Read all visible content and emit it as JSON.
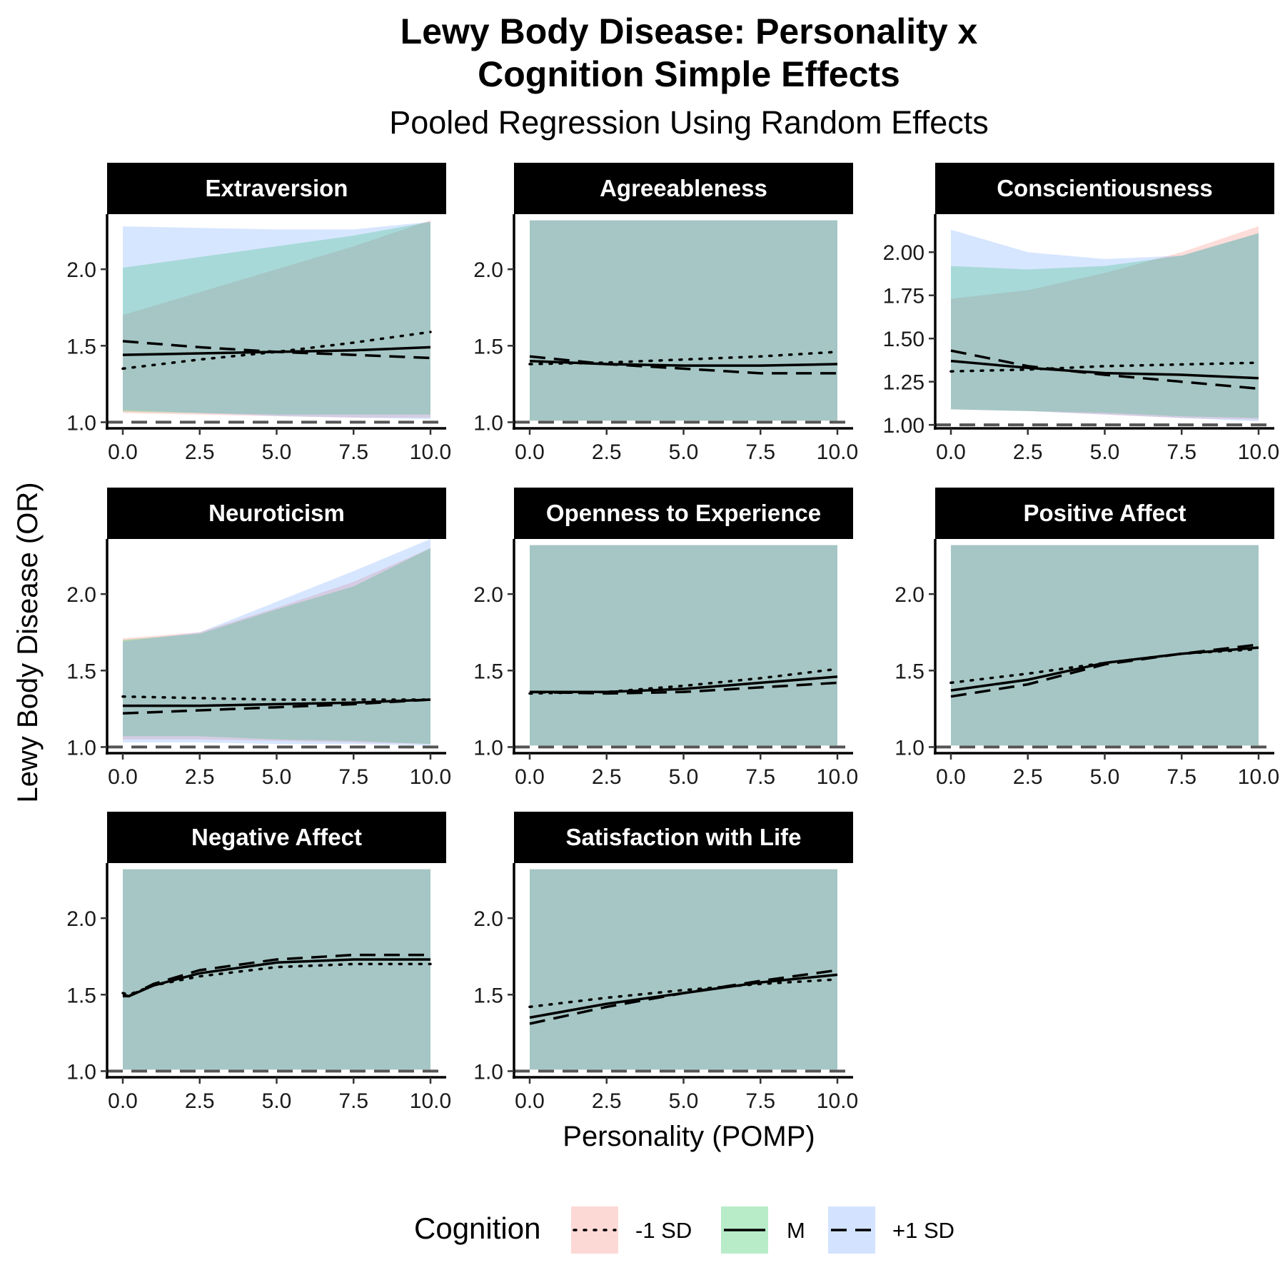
{
  "title_line1": "Lewy Body Disease: Personality x",
  "title_line2": "Cognition Simple Effects",
  "subtitle": "Pooled Regression Using Random Effects",
  "xlabel": "Personality (POMP)",
  "ylabel": "Lewy Body Disease (OR)",
  "legend": {
    "title": "Cognition",
    "entries": [
      {
        "label": "-1 SD",
        "linetype": "dotted",
        "fill": "#F8766D"
      },
      {
        "label": "M",
        "linetype": "solid",
        "fill": "#00BA38"
      },
      {
        "label": "+1 SD",
        "linetype": "dashed",
        "fill": "#619CFF"
      }
    ]
  },
  "colors": {
    "ribbon_overlap": "#a6c6c5",
    "ref_line": "#555555"
  },
  "chart_data": [
    {
      "type": "line",
      "title": "Extraversion",
      "xlim": [
        0,
        10
      ],
      "ylim": [
        0.96,
        2.36
      ],
      "xticks": [
        "0.0",
        "2.5",
        "5.0",
        "7.5",
        "10.0"
      ],
      "yticks": [
        1.0,
        1.5,
        2.0
      ],
      "ytick_labels": [
        "1.0",
        "1.5",
        "2.0"
      ],
      "ref_line": 1.0,
      "x": [
        0,
        2.5,
        5,
        7.5,
        10
      ],
      "series": [
        {
          "name": "-1 SD",
          "values": [
            1.35,
            1.41,
            1.46,
            1.52,
            1.59
          ],
          "lower": [
            1.06,
            1.05,
            1.04,
            1.03,
            1.03
          ],
          "upper": [
            1.7,
            1.85,
            2.0,
            2.15,
            2.32
          ]
        },
        {
          "name": "M",
          "values": [
            1.44,
            1.45,
            1.46,
            1.47,
            1.49
          ],
          "lower": [
            1.07,
            1.06,
            1.05,
            1.05,
            1.05
          ],
          "upper": [
            2.01,
            2.08,
            2.15,
            2.22,
            2.31
          ]
        },
        {
          "name": "+1 SD",
          "values": [
            1.53,
            1.49,
            1.46,
            1.44,
            1.42
          ],
          "lower": [
            1.08,
            1.06,
            1.04,
            1.03,
            1.02
          ],
          "upper": [
            2.28,
            2.27,
            2.26,
            2.26,
            2.31
          ]
        }
      ]
    },
    {
      "type": "line",
      "title": "Agreeableness",
      "xlim": [
        0,
        10
      ],
      "ylim": [
        0.96,
        2.36
      ],
      "xticks": [
        "0.0",
        "2.5",
        "5.0",
        "7.5",
        "10.0"
      ],
      "yticks": [
        1.0,
        1.5,
        2.0
      ],
      "ytick_labels": [
        "1.0",
        "1.5",
        "2.0"
      ],
      "ref_line": 1.0,
      "x": [
        0,
        2.5,
        5,
        7.5,
        10
      ],
      "series": [
        {
          "name": "-1 SD",
          "values": [
            1.38,
            1.39,
            1.41,
            1.43,
            1.46
          ],
          "lower": [
            1.01,
            1.01,
            1.01,
            1.01,
            1.01
          ],
          "upper": [
            2.32,
            2.32,
            2.32,
            2.32,
            2.32
          ]
        },
        {
          "name": "M",
          "values": [
            1.4,
            1.38,
            1.37,
            1.37,
            1.38
          ],
          "lower": [
            1.01,
            1.01,
            1.01,
            1.01,
            1.01
          ],
          "upper": [
            2.32,
            2.32,
            2.32,
            2.32,
            2.32
          ]
        },
        {
          "name": "+1 SD",
          "values": [
            1.43,
            1.38,
            1.35,
            1.32,
            1.32
          ],
          "lower": [
            1.01,
            1.01,
            1.01,
            1.01,
            1.01
          ],
          "upper": [
            2.32,
            2.32,
            2.32,
            2.32,
            2.32
          ]
        }
      ]
    },
    {
      "type": "line",
      "title": "Conscientiousness",
      "xlim": [
        0,
        10
      ],
      "ylim": [
        0.98,
        2.22
      ],
      "xticks": [
        "0.0",
        "2.5",
        "5.0",
        "7.5",
        "10.0"
      ],
      "yticks": [
        1.0,
        1.25,
        1.5,
        1.75,
        2.0
      ],
      "ytick_labels": [
        "1.00",
        "1.25",
        "1.50",
        "1.75",
        "2.00"
      ],
      "ref_line": 1.0,
      "x": [
        0,
        2.5,
        5,
        7.5,
        10
      ],
      "series": [
        {
          "name": "-1 SD",
          "values": [
            1.31,
            1.32,
            1.34,
            1.35,
            1.36
          ],
          "lower": [
            1.09,
            1.08,
            1.06,
            1.04,
            1.03
          ],
          "upper": [
            1.73,
            1.78,
            1.88,
            2.0,
            2.15
          ]
        },
        {
          "name": "M",
          "values": [
            1.37,
            1.33,
            1.3,
            1.29,
            1.27
          ],
          "lower": [
            1.09,
            1.08,
            1.07,
            1.05,
            1.04
          ],
          "upper": [
            1.92,
            1.9,
            1.92,
            1.98,
            2.11
          ]
        },
        {
          "name": "+1 SD",
          "values": [
            1.43,
            1.34,
            1.29,
            1.25,
            1.21
          ],
          "lower": [
            1.09,
            1.08,
            1.06,
            1.04,
            1.02
          ],
          "upper": [
            2.13,
            2.0,
            1.96,
            1.98,
            2.11
          ]
        }
      ]
    },
    {
      "type": "line",
      "title": "Neuroticism",
      "xlim": [
        0,
        10
      ],
      "ylim": [
        0.96,
        2.36
      ],
      "xticks": [
        "0.0",
        "2.5",
        "5.0",
        "7.5",
        "10.0"
      ],
      "yticks": [
        1.0,
        1.5,
        2.0
      ],
      "ytick_labels": [
        "1.0",
        "1.5",
        "2.0"
      ],
      "ref_line": 1.0,
      "x": [
        0,
        2.5,
        5,
        7.5,
        10
      ],
      "series": [
        {
          "name": "-1 SD",
          "values": [
            1.33,
            1.32,
            1.31,
            1.31,
            1.31
          ],
          "lower": [
            1.05,
            1.05,
            1.04,
            1.03,
            1.02
          ],
          "upper": [
            1.71,
            1.75,
            1.91,
            2.08,
            2.3
          ]
        },
        {
          "name": "M",
          "values": [
            1.27,
            1.27,
            1.28,
            1.29,
            1.31
          ],
          "lower": [
            1.07,
            1.07,
            1.05,
            1.04,
            1.02
          ],
          "upper": [
            1.7,
            1.74,
            1.9,
            2.05,
            2.3
          ]
        },
        {
          "name": "+1 SD",
          "values": [
            1.22,
            1.24,
            1.26,
            1.28,
            1.31
          ],
          "lower": [
            1.03,
            1.03,
            1.02,
            1.02,
            1.01
          ],
          "upper": [
            1.69,
            1.75,
            1.95,
            2.15,
            2.36
          ]
        }
      ]
    },
    {
      "type": "line",
      "title": "Openness to Experience",
      "xlim": [
        0,
        10
      ],
      "ylim": [
        0.96,
        2.36
      ],
      "xticks": [
        "0.0",
        "2.5",
        "5.0",
        "7.5",
        "10.0"
      ],
      "yticks": [
        1.0,
        1.5,
        2.0
      ],
      "ytick_labels": [
        "1.0",
        "1.5",
        "2.0"
      ],
      "ref_line": 1.0,
      "x": [
        0,
        2.5,
        5,
        7.5,
        10
      ],
      "series": [
        {
          "name": "-1 SD",
          "values": [
            1.35,
            1.36,
            1.4,
            1.45,
            1.51
          ],
          "lower": [
            1.01,
            1.01,
            1.01,
            1.01,
            1.01
          ],
          "upper": [
            2.32,
            2.32,
            2.32,
            2.32,
            2.32
          ]
        },
        {
          "name": "M",
          "values": [
            1.36,
            1.36,
            1.38,
            1.42,
            1.46
          ],
          "lower": [
            1.01,
            1.01,
            1.01,
            1.01,
            1.01
          ],
          "upper": [
            2.32,
            2.32,
            2.32,
            2.32,
            2.32
          ]
        },
        {
          "name": "+1 SD",
          "values": [
            1.36,
            1.35,
            1.36,
            1.39,
            1.42
          ],
          "lower": [
            1.01,
            1.01,
            1.01,
            1.01,
            1.01
          ],
          "upper": [
            2.32,
            2.32,
            2.32,
            2.32,
            2.32
          ]
        }
      ]
    },
    {
      "type": "line",
      "title": "Positive Affect",
      "xlim": [
        0,
        10
      ],
      "ylim": [
        0.96,
        2.36
      ],
      "xticks": [
        "0.0",
        "2.5",
        "5.0",
        "7.5",
        "10.0"
      ],
      "yticks": [
        1.0,
        1.5,
        2.0
      ],
      "ytick_labels": [
        "1.0",
        "1.5",
        "2.0"
      ],
      "ref_line": 1.0,
      "x": [
        0,
        2.5,
        5,
        7.5,
        10
      ],
      "series": [
        {
          "name": "-1 SD",
          "values": [
            1.42,
            1.48,
            1.55,
            1.61,
            1.64
          ],
          "lower": [
            1.01,
            1.01,
            1.01,
            1.01,
            1.01
          ],
          "upper": [
            2.32,
            2.32,
            2.32,
            2.32,
            2.32
          ]
        },
        {
          "name": "M",
          "values": [
            1.37,
            1.44,
            1.55,
            1.61,
            1.65
          ],
          "lower": [
            1.01,
            1.01,
            1.01,
            1.01,
            1.01
          ],
          "upper": [
            2.32,
            2.32,
            2.32,
            2.32,
            2.32
          ]
        },
        {
          "name": "+1 SD",
          "values": [
            1.33,
            1.41,
            1.54,
            1.61,
            1.67
          ],
          "lower": [
            1.01,
            1.01,
            1.01,
            1.01,
            1.01
          ],
          "upper": [
            2.32,
            2.32,
            2.32,
            2.32,
            2.32
          ]
        }
      ]
    },
    {
      "type": "line",
      "title": "Negative Affect",
      "xlim": [
        0,
        10
      ],
      "ylim": [
        0.96,
        2.36
      ],
      "xticks": [
        "0.0",
        "2.5",
        "5.0",
        "7.5",
        "10.0"
      ],
      "yticks": [
        1.0,
        1.5,
        2.0
      ],
      "ytick_labels": [
        "1.0",
        "1.5",
        "2.0"
      ],
      "ref_line": 1.0,
      "x": [
        0,
        0.2,
        1,
        2.5,
        5,
        7.5,
        10
      ],
      "series": [
        {
          "name": "-1 SD",
          "values": [
            1.51,
            1.5,
            1.56,
            1.62,
            1.68,
            1.7,
            1.7
          ],
          "lower": [
            1.01,
            1.01,
            1.01,
            1.01,
            1.01,
            1.01,
            1.01
          ],
          "upper": [
            2.32,
            2.32,
            2.32,
            2.32,
            2.32,
            2.32,
            2.32
          ]
        },
        {
          "name": "M",
          "values": [
            1.5,
            1.49,
            1.56,
            1.64,
            1.71,
            1.73,
            1.73
          ],
          "lower": [
            1.01,
            1.01,
            1.01,
            1.01,
            1.01,
            1.01,
            1.01
          ],
          "upper": [
            2.32,
            2.32,
            2.32,
            2.32,
            2.32,
            2.32,
            2.32
          ]
        },
        {
          "name": "+1 SD",
          "values": [
            1.49,
            1.49,
            1.57,
            1.66,
            1.73,
            1.76,
            1.76
          ],
          "lower": [
            1.01,
            1.01,
            1.01,
            1.01,
            1.01,
            1.01,
            1.01
          ],
          "upper": [
            2.32,
            2.32,
            2.32,
            2.32,
            2.32,
            2.32,
            2.32
          ]
        }
      ]
    },
    {
      "type": "line",
      "title": "Satisfaction with Life",
      "xlim": [
        0,
        10
      ],
      "ylim": [
        0.96,
        2.36
      ],
      "xticks": [
        "0.0",
        "2.5",
        "5.0",
        "7.5",
        "10.0"
      ],
      "yticks": [
        1.0,
        1.5,
        2.0
      ],
      "ytick_labels": [
        "1.0",
        "1.5",
        "2.0"
      ],
      "ref_line": 1.0,
      "x": [
        0,
        2.5,
        5,
        7.5,
        10
      ],
      "series": [
        {
          "name": "-1 SD",
          "values": [
            1.42,
            1.48,
            1.53,
            1.57,
            1.6
          ],
          "lower": [
            1.01,
            1.01,
            1.01,
            1.01,
            1.01
          ],
          "upper": [
            2.32,
            2.32,
            2.32,
            2.32,
            2.32
          ]
        },
        {
          "name": "M",
          "values": [
            1.35,
            1.44,
            1.51,
            1.58,
            1.63
          ],
          "lower": [
            1.01,
            1.01,
            1.01,
            1.01,
            1.01
          ],
          "upper": [
            2.32,
            2.32,
            2.32,
            2.32,
            2.32
          ]
        },
        {
          "name": "+1 SD",
          "values": [
            1.31,
            1.42,
            1.51,
            1.59,
            1.66
          ],
          "lower": [
            1.01,
            1.01,
            1.01,
            1.01,
            1.01
          ],
          "upper": [
            2.32,
            2.32,
            2.32,
            2.32,
            2.32
          ]
        }
      ]
    }
  ]
}
